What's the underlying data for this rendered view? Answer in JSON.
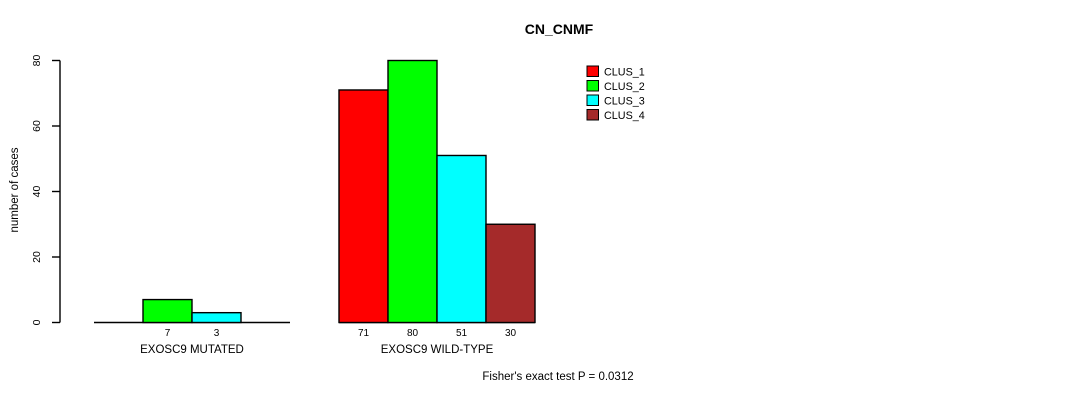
{
  "chart_data": {
    "type": "bar",
    "title": "CN_CNMF",
    "ylabel": "number of cases",
    "xlabel": "",
    "ylim": [
      0,
      80
    ],
    "yticks": [
      0,
      20,
      40,
      60,
      80
    ],
    "grid": false,
    "legend_position": "top-right",
    "series": [
      {
        "name": "CLUS_1",
        "color": "#FF0000"
      },
      {
        "name": "CLUS_2",
        "color": "#00FF00"
      },
      {
        "name": "CLUS_3",
        "color": "#00FFFF"
      },
      {
        "name": "CLUS_4",
        "color": "#A52A2A"
      }
    ],
    "groups": [
      {
        "label": "EXOSC9 MUTATED",
        "values": [
          0,
          7,
          3,
          0
        ],
        "bar_labels": [
          "",
          "7",
          "3",
          ""
        ]
      },
      {
        "label": "EXOSC9 WILD-TYPE",
        "values": [
          71,
          80,
          51,
          30
        ],
        "bar_labels": [
          "71",
          "80",
          "51",
          "30"
        ]
      }
    ],
    "annotation": "Fisher's exact test P = 0.0312"
  }
}
